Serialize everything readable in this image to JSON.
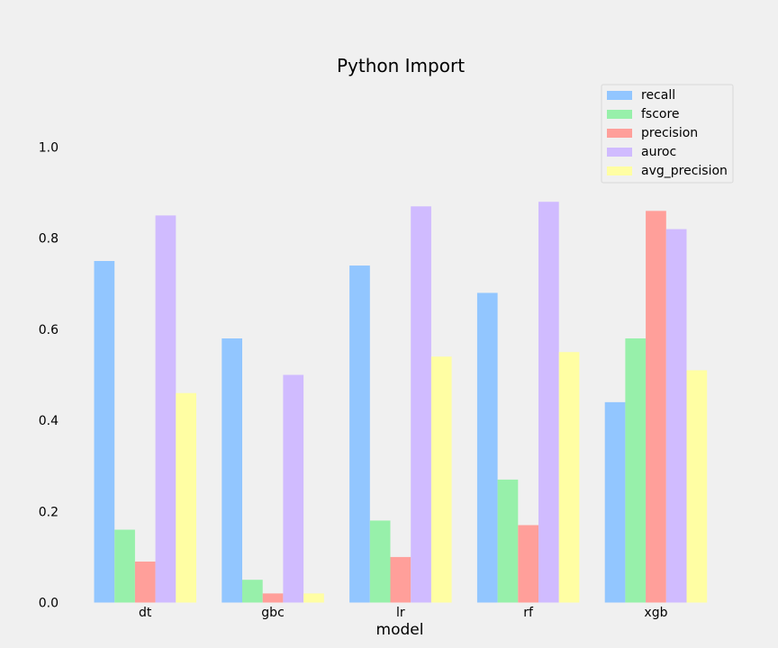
{
  "chart_data": {
    "type": "bar",
    "title": "Python Import",
    "xlabel": "model",
    "ylabel": "",
    "ylim": [
      0,
      1.1
    ],
    "yticks": [
      "0.0",
      "0.2",
      "0.4",
      "0.6",
      "0.8",
      "1.0"
    ],
    "grid": false,
    "legend_position": "top-right",
    "categories": [
      "dt",
      "gbc",
      "lr",
      "rf",
      "xgb"
    ],
    "series": [
      {
        "name": "recall",
        "color": "#92c6ff",
        "values": [
          0.75,
          0.58,
          0.74,
          0.68,
          0.44
        ]
      },
      {
        "name": "fscore",
        "color": "#97f0aa",
        "values": [
          0.16,
          0.05,
          0.18,
          0.27,
          0.58
        ]
      },
      {
        "name": "precision",
        "color": "#ff9f9a",
        "values": [
          0.09,
          0.02,
          0.1,
          0.17,
          0.86
        ]
      },
      {
        "name": "auroc",
        "color": "#d0bbff",
        "values": [
          0.85,
          0.5,
          0.87,
          0.88,
          0.82
        ]
      },
      {
        "name": "avg_precision",
        "color": "#fffea3",
        "values": [
          0.46,
          0.02,
          0.54,
          0.55,
          0.51
        ]
      }
    ]
  }
}
